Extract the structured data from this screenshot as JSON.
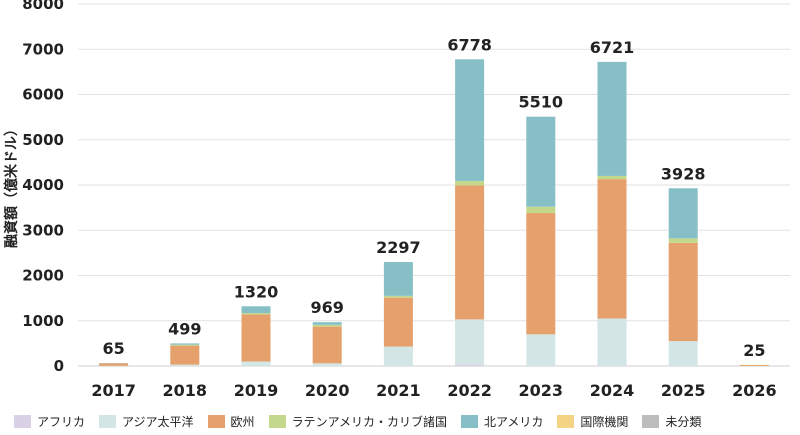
{
  "chart_data": {
    "type": "bar",
    "stacked": true,
    "title": "",
    "xlabel": "",
    "ylabel": "融資額（億米ドル）",
    "ylim": [
      0,
      8000
    ],
    "yticks": [
      0,
      1000,
      2000,
      3000,
      4000,
      5000,
      6000,
      7000,
      8000
    ],
    "categories": [
      "2017",
      "2018",
      "2019",
      "2020",
      "2021",
      "2022",
      "2023",
      "2024",
      "2025",
      "2026"
    ],
    "totals": [
      65,
      499,
      1320,
      969,
      2297,
      6778,
      5510,
      6721,
      3928,
      25
    ],
    "legend_position": "bottom",
    "series": [
      {
        "name": "アフリカ",
        "color": "#d9d2e6",
        "values": [
          0,
          0,
          0,
          0,
          0,
          30,
          0,
          0,
          0,
          0
        ]
      },
      {
        "name": "アジア太平洋",
        "color": "#d3e6e5",
        "values": [
          5,
          30,
          100,
          60,
          430,
          1000,
          700,
          1050,
          550,
          0
        ]
      },
      {
        "name": "欧州",
        "color": "#e5a06b",
        "values": [
          55,
          420,
          1040,
          810,
          1080,
          2960,
          2680,
          3080,
          2170,
          20
        ]
      },
      {
        "name": "ラテンアメリカ・カリブ諸国",
        "color": "#c3d88c",
        "values": [
          0,
          20,
          30,
          40,
          40,
          100,
          140,
          70,
          100,
          0
        ]
      },
      {
        "name": "北アメリカ",
        "color": "#86c0c6",
        "values": [
          5,
          29,
          150,
          59,
          747,
          2688,
          1990,
          2521,
          1108,
          0
        ]
      },
      {
        "name": "国際機関",
        "color": "#f2d484",
        "values": [
          0,
          0,
          0,
          0,
          0,
          0,
          0,
          0,
          0,
          5
        ]
      },
      {
        "name": "未分類",
        "color": "#bdbdbd",
        "values": [
          0,
          0,
          0,
          0,
          0,
          0,
          0,
          0,
          0,
          0
        ]
      }
    ]
  }
}
